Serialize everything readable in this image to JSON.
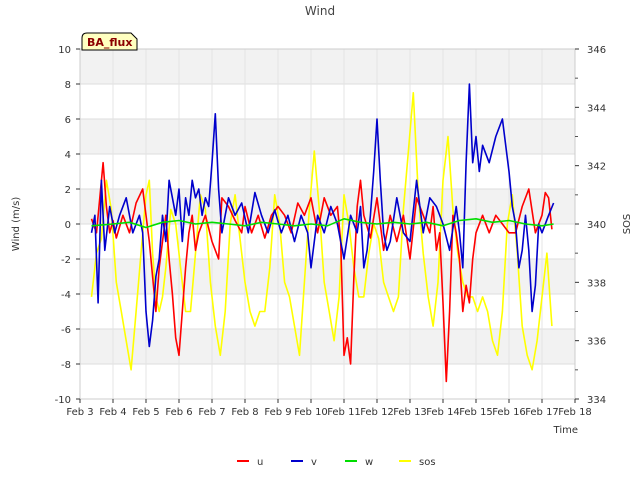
{
  "chart_data": {
    "type": "line",
    "title": "Wind",
    "xlabel": "Time",
    "ylabel": "Wind (m/s)",
    "y2label": "SOS",
    "badge": "BA_flux",
    "xlim": [
      3,
      18
    ],
    "ylim": [
      -10,
      10
    ],
    "y2lim": [
      334,
      346
    ],
    "x_ticks": [
      {
        "v": 3,
        "label": "Feb 3"
      },
      {
        "v": 4,
        "label": "Feb 4"
      },
      {
        "v": 5,
        "label": "Feb 5"
      },
      {
        "v": 6,
        "label": "Feb 6"
      },
      {
        "v": 7,
        "label": "Feb 7"
      },
      {
        "v": 8,
        "label": "Feb 8"
      },
      {
        "v": 9,
        "label": "Feb 9"
      },
      {
        "v": 10,
        "label": "Feb 10"
      },
      {
        "v": 11,
        "label": "Feb 11"
      },
      {
        "v": 12,
        "label": "Feb 12"
      },
      {
        "v": 13,
        "label": "Feb 13"
      },
      {
        "v": 14,
        "label": "Feb 14"
      },
      {
        "v": 15,
        "label": "Feb 15"
      },
      {
        "v": 16,
        "label": "Feb 16"
      },
      {
        "v": 17,
        "label": "Feb 17"
      },
      {
        "v": 18,
        "label": "Feb 18"
      }
    ],
    "y_ticks": [
      "-10",
      "-8",
      "-6",
      "-4",
      "-2",
      "0",
      "2",
      "4",
      "6",
      "8",
      "10"
    ],
    "y2_ticks": [
      "334",
      "336",
      "338",
      "340",
      "342",
      "344",
      "346"
    ],
    "grid": true,
    "legend_position": "bottom-center",
    "series": [
      {
        "name": "u",
        "color": "#ff0000",
        "axis": "left",
        "x": [
          3.35,
          3.5,
          3.6,
          3.7,
          3.8,
          3.9,
          4.0,
          4.1,
          4.3,
          4.5,
          4.7,
          4.9,
          5.0,
          5.1,
          5.2,
          5.3,
          5.4,
          5.5,
          5.6,
          5.7,
          5.8,
          5.9,
          6.0,
          6.1,
          6.2,
          6.3,
          6.4,
          6.5,
          6.6,
          6.8,
          7.0,
          7.2,
          7.3,
          7.5,
          7.7,
          7.9,
          8.0,
          8.2,
          8.4,
          8.6,
          8.8,
          9.0,
          9.2,
          9.4,
          9.6,
          9.8,
          10.0,
          10.2,
          10.4,
          10.6,
          10.8,
          10.9,
          11.0,
          11.1,
          11.2,
          11.3,
          11.4,
          11.5,
          11.6,
          11.8,
          12.0,
          12.2,
          12.4,
          12.6,
          12.8,
          13.0,
          13.2,
          13.4,
          13.6,
          13.7,
          13.8,
          13.9,
          14.0,
          14.1,
          14.2,
          14.3,
          14.4,
          14.5,
          14.6,
          14.7,
          14.8,
          14.9,
          15.0,
          15.2,
          15.4,
          15.6,
          15.8,
          16.0,
          16.2,
          16.4,
          16.6,
          16.8,
          17.0,
          17.1,
          17.2,
          17.3
        ],
        "values": [
          0.3,
          -0.5,
          1.5,
          3.5,
          1.0,
          -0.5,
          0.2,
          -0.8,
          0.5,
          -0.5,
          1.2,
          2.0,
          0.5,
          -1.0,
          -3.0,
          -5.0,
          -2.5,
          -1.0,
          0.5,
          -2.0,
          -4.0,
          -6.5,
          -7.5,
          -5.0,
          -2.5,
          -0.5,
          0.5,
          -1.5,
          -0.5,
          0.5,
          -1.0,
          -2.0,
          1.5,
          1.0,
          0.2,
          -0.5,
          1.0,
          -0.5,
          0.5,
          -0.8,
          0.5,
          1.0,
          0.5,
          -0.5,
          1.2,
          0.5,
          1.5,
          -0.5,
          1.5,
          0.5,
          1.0,
          -1.0,
          -7.5,
          -6.5,
          -8.0,
          -3.0,
          1.0,
          2.5,
          0.5,
          -0.8,
          1.5,
          -1.5,
          0.5,
          -1.0,
          0.5,
          -2.0,
          1.5,
          0.5,
          -0.5,
          1.0,
          -1.5,
          -0.5,
          -4.5,
          -9.0,
          -5.0,
          0.5,
          -0.5,
          -2.0,
          -5.0,
          -3.5,
          -4.5,
          -2.0,
          -0.5,
          0.5,
          -0.5,
          0.5,
          0.0,
          -0.5,
          -0.5,
          1.0,
          2.0,
          -0.5,
          0.5,
          1.8,
          1.5,
          -0.3
        ]
      },
      {
        "name": "v",
        "color": "#0000cc",
        "axis": "left",
        "x": [
          3.35,
          3.45,
          3.55,
          3.65,
          3.75,
          3.9,
          4.05,
          4.2,
          4.4,
          4.6,
          4.8,
          4.9,
          5.0,
          5.1,
          5.2,
          5.3,
          5.4,
          5.5,
          5.6,
          5.7,
          5.8,
          5.9,
          6.0,
          6.1,
          6.2,
          6.3,
          6.4,
          6.5,
          6.6,
          6.7,
          6.8,
          6.9,
          7.0,
          7.1,
          7.2,
          7.3,
          7.5,
          7.7,
          7.9,
          8.1,
          8.3,
          8.5,
          8.7,
          8.9,
          9.1,
          9.3,
          9.5,
          9.7,
          9.9,
          10.0,
          10.1,
          10.2,
          10.4,
          10.6,
          10.8,
          11.0,
          11.2,
          11.4,
          11.5,
          11.6,
          11.7,
          11.8,
          11.9,
          12.0,
          12.1,
          12.2,
          12.3,
          12.4,
          12.6,
          12.8,
          13.0,
          13.2,
          13.4,
          13.6,
          13.8,
          14.0,
          14.2,
          14.4,
          14.5,
          14.6,
          14.7,
          14.8,
          14.9,
          15.0,
          15.1,
          15.2,
          15.4,
          15.6,
          15.8,
          16.0,
          16.1,
          16.2,
          16.3,
          16.4,
          16.5,
          16.6,
          16.7,
          16.8,
          16.9,
          17.0,
          17.2,
          17.35
        ],
        "values": [
          -0.5,
          0.5,
          -4.5,
          2.5,
          -1.5,
          1.0,
          -0.5,
          0.5,
          1.5,
          -0.5,
          0.5,
          -0.5,
          -5.0,
          -7.0,
          -5.5,
          -3.0,
          -2.0,
          0.5,
          -1.0,
          2.5,
          1.5,
          0.5,
          2.0,
          -1.0,
          1.5,
          0.5,
          2.5,
          1.5,
          2.0,
          0.5,
          1.5,
          1.0,
          3.5,
          6.3,
          2.0,
          -0.5,
          1.5,
          0.5,
          1.2,
          -0.5,
          1.8,
          0.5,
          -0.5,
          0.8,
          -0.5,
          0.5,
          -1.0,
          0.5,
          -0.5,
          -2.5,
          -1.0,
          0.5,
          -0.5,
          1.0,
          0.0,
          -2.0,
          0.5,
          -0.5,
          1.0,
          -2.5,
          -1.5,
          0.5,
          3.0,
          6.0,
          2.5,
          -0.5,
          -1.5,
          -1.0,
          1.5,
          -0.5,
          -1.0,
          2.5,
          -0.5,
          1.5,
          1.0,
          0.0,
          -1.5,
          1.0,
          -0.5,
          -2.5,
          3.5,
          8.0,
          3.5,
          5.0,
          3.0,
          4.5,
          3.5,
          5.0,
          6.0,
          3.0,
          1.0,
          0.0,
          -2.5,
          -1.5,
          0.5,
          -1.5,
          -5.0,
          -3.5,
          0.0,
          -0.5,
          0.5,
          1.2
        ]
      },
      {
        "name": "w",
        "color": "#00dd00",
        "axis": "left",
        "x": [
          3.35,
          4.0,
          4.5,
          5.0,
          5.5,
          6.0,
          6.5,
          7.0,
          7.5,
          8.0,
          8.5,
          9.0,
          9.5,
          10.0,
          10.5,
          11.0,
          11.5,
          12.0,
          12.5,
          13.0,
          13.5,
          14.0,
          14.5,
          15.0,
          15.5,
          16.0,
          16.5,
          17.0,
          17.35
        ],
        "values": [
          -0.1,
          0.0,
          0.1,
          -0.2,
          0.1,
          0.2,
          0.0,
          0.1,
          0.0,
          -0.1,
          0.1,
          0.0,
          -0.1,
          0.0,
          -0.1,
          0.3,
          0.1,
          0.0,
          0.1,
          0.0,
          0.1,
          -0.1,
          0.2,
          0.3,
          0.1,
          0.2,
          0.0,
          -0.1,
          0.0
        ]
      },
      {
        "name": "sos",
        "color": "#ffff00",
        "axis": "right",
        "x": [
          3.35,
          3.5,
          3.65,
          3.8,
          3.95,
          4.1,
          4.25,
          4.4,
          4.55,
          4.7,
          4.85,
          5.0,
          5.1,
          5.2,
          5.3,
          5.4,
          5.5,
          5.6,
          5.75,
          5.9,
          6.05,
          6.2,
          6.35,
          6.5,
          6.65,
          6.8,
          6.95,
          7.1,
          7.25,
          7.4,
          7.55,
          7.7,
          7.85,
          8.0,
          8.15,
          8.3,
          8.45,
          8.6,
          8.75,
          8.9,
          9.05,
          9.2,
          9.35,
          9.5,
          9.65,
          9.8,
          9.95,
          10.1,
          10.25,
          10.4,
          10.55,
          10.7,
          10.85,
          11.0,
          11.15,
          11.3,
          11.45,
          11.6,
          11.75,
          11.9,
          12.05,
          12.2,
          12.35,
          12.5,
          12.65,
          12.8,
          12.95,
          13.1,
          13.25,
          13.4,
          13.55,
          13.7,
          13.85,
          14.0,
          14.15,
          14.3,
          14.45,
          14.6,
          14.75,
          14.9,
          15.05,
          15.2,
          15.35,
          15.5,
          15.65,
          15.8,
          15.95,
          16.1,
          16.25,
          16.4,
          16.55,
          16.7,
          16.85,
          17.0,
          17.15,
          17.3
        ],
        "values": [
          337.5,
          339.0,
          339.5,
          341.5,
          340.5,
          338.0,
          337.0,
          336.0,
          335.0,
          337.0,
          339.0,
          341.0,
          341.5,
          339.0,
          337.5,
          337.0,
          337.5,
          338.5,
          340.5,
          340.0,
          338.5,
          337.0,
          337.0,
          339.0,
          341.0,
          340.5,
          338.0,
          336.5,
          335.5,
          337.0,
          340.0,
          341.0,
          339.5,
          338.0,
          337.0,
          336.5,
          337.0,
          337.0,
          338.5,
          341.0,
          340.0,
          338.0,
          337.5,
          336.5,
          335.5,
          338.0,
          340.5,
          342.5,
          340.5,
          338.0,
          337.0,
          336.0,
          337.5,
          341.0,
          340.0,
          338.5,
          337.5,
          337.5,
          339.0,
          340.0,
          339.5,
          338.0,
          337.5,
          337.0,
          337.5,
          340.5,
          342.5,
          344.5,
          341.0,
          339.0,
          337.5,
          336.5,
          338.0,
          341.5,
          343.0,
          340.5,
          339.0,
          338.0,
          337.5,
          337.5,
          337.0,
          337.5,
          337.0,
          336.0,
          335.5,
          337.0,
          340.0,
          341.0,
          339.0,
          336.5,
          335.5,
          335.0,
          336.0,
          337.5,
          339.0,
          336.5
        ]
      }
    ]
  }
}
